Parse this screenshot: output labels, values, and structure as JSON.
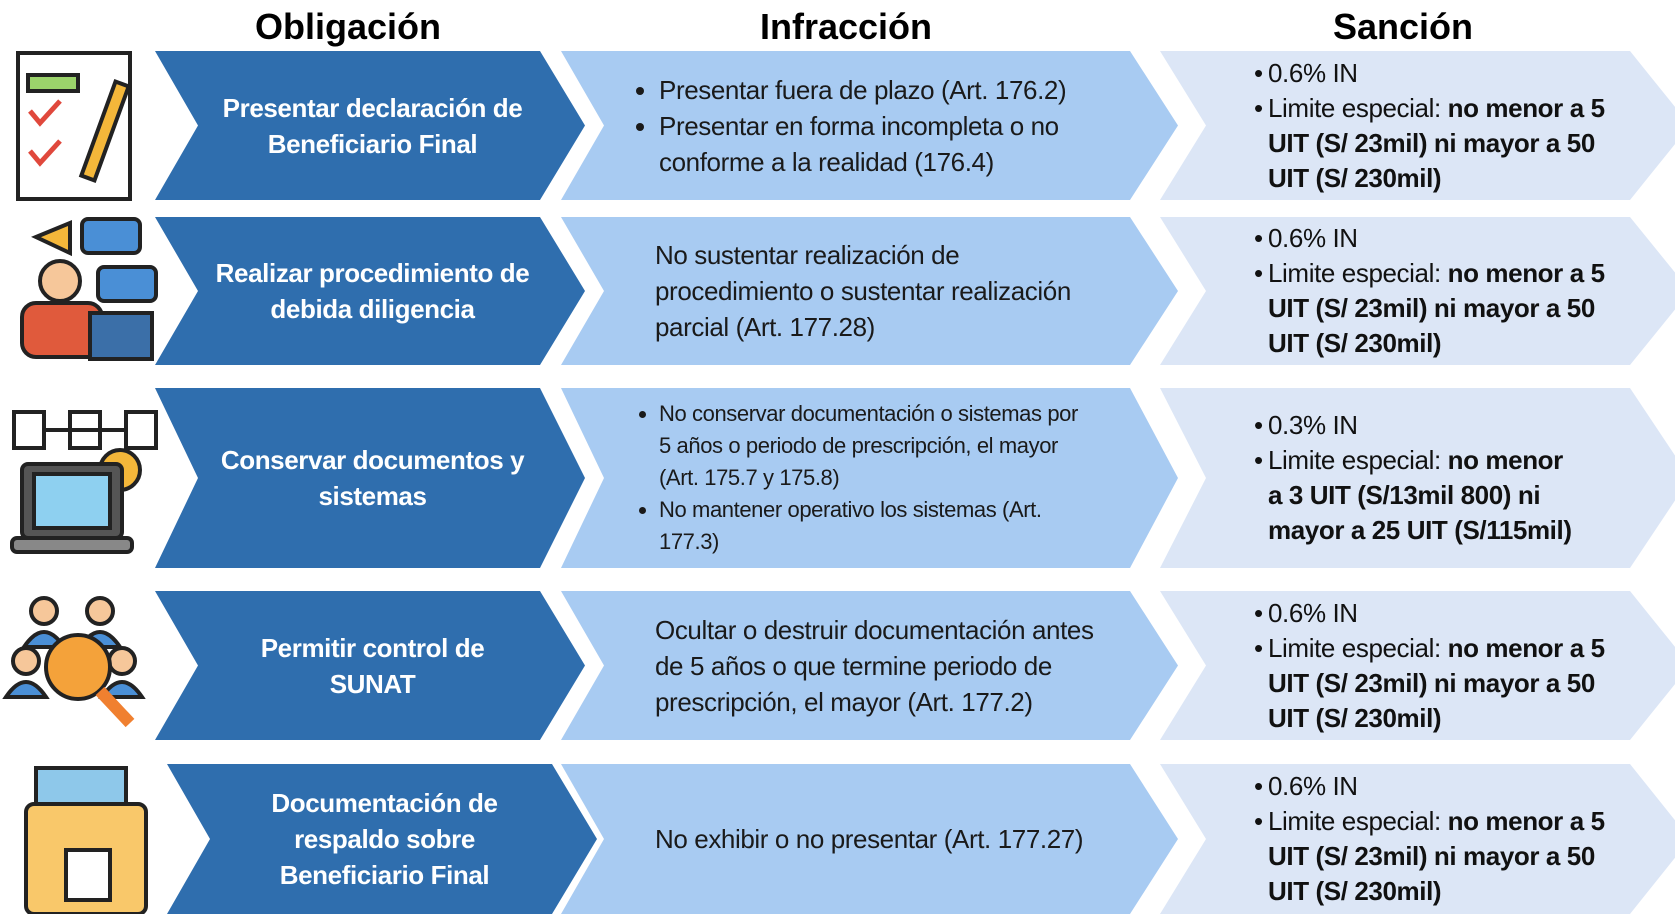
{
  "headers": [
    "Obligación",
    "Infracción",
    "Sanción"
  ],
  "rows": [
    {
      "obligation": "Presentar declaración de Beneficiario Final",
      "infraction_items": [
        "Presentar fuera de plazo (Art. 176.2)",
        "Presentar en forma incompleta o no conforme a la realidad (176.4)"
      ],
      "sanction": {
        "rate": "0.6% IN",
        "limit_label": "Limite especial:",
        "limit_value": "no menor a 5 UIT (S/ 23mil) ni mayor a 50 UIT (S/ 230mil)"
      }
    },
    {
      "obligation": "Realizar procedimiento de debida diligencia",
      "infraction": "No sustentar realización de procedimiento o sustentar realización parcial (Art. 177.28)",
      "sanction": {
        "rate": "0.6% IN",
        "limit_label": "Limite especial:",
        "limit_value": "no menor a 5 UIT (S/ 23mil) ni mayor a 50 UIT (S/ 230mil)"
      }
    },
    {
      "obligation": "Conservar documentos y sistemas",
      "infraction_items": [
        "No conservar documentación o sistemas por 5 años o periodo de prescripción, el mayor (Art. 175.7 y 175.8)",
        "No mantener operativo los sistemas (Art. 177.3)"
      ],
      "sanction": {
        "rate": "0.3% IN",
        "limit_label": "Limite especial:",
        "limit_value": "no menor a 3 UIT (S/13mil 800) ni mayor a 25 UIT (S/115mil)"
      }
    },
    {
      "obligation": "Permitir control de SUNAT",
      "infraction": "Ocultar o destruir documentación antes de 5 años o que termine periodo de prescripción, el mayor (Art. 177.2)",
      "sanction": {
        "rate": "0.6% IN",
        "limit_label": "Limite especial:",
        "limit_value": "no menor a 5 UIT (S/ 23mil) ni mayor a 50 UIT (S/ 230mil)"
      }
    },
    {
      "obligation": "Documentación de respaldo sobre Beneficiario Final",
      "infraction": "No exhibir o no presentar (Art. 177.27)",
      "sanction": {
        "rate": "0.6% IN",
        "limit_label": "Limite especial:",
        "limit_value": "no menor a 5 UIT (S/ 23mil) ni mayor a 50 UIT (S/ 230mil)"
      }
    }
  ]
}
